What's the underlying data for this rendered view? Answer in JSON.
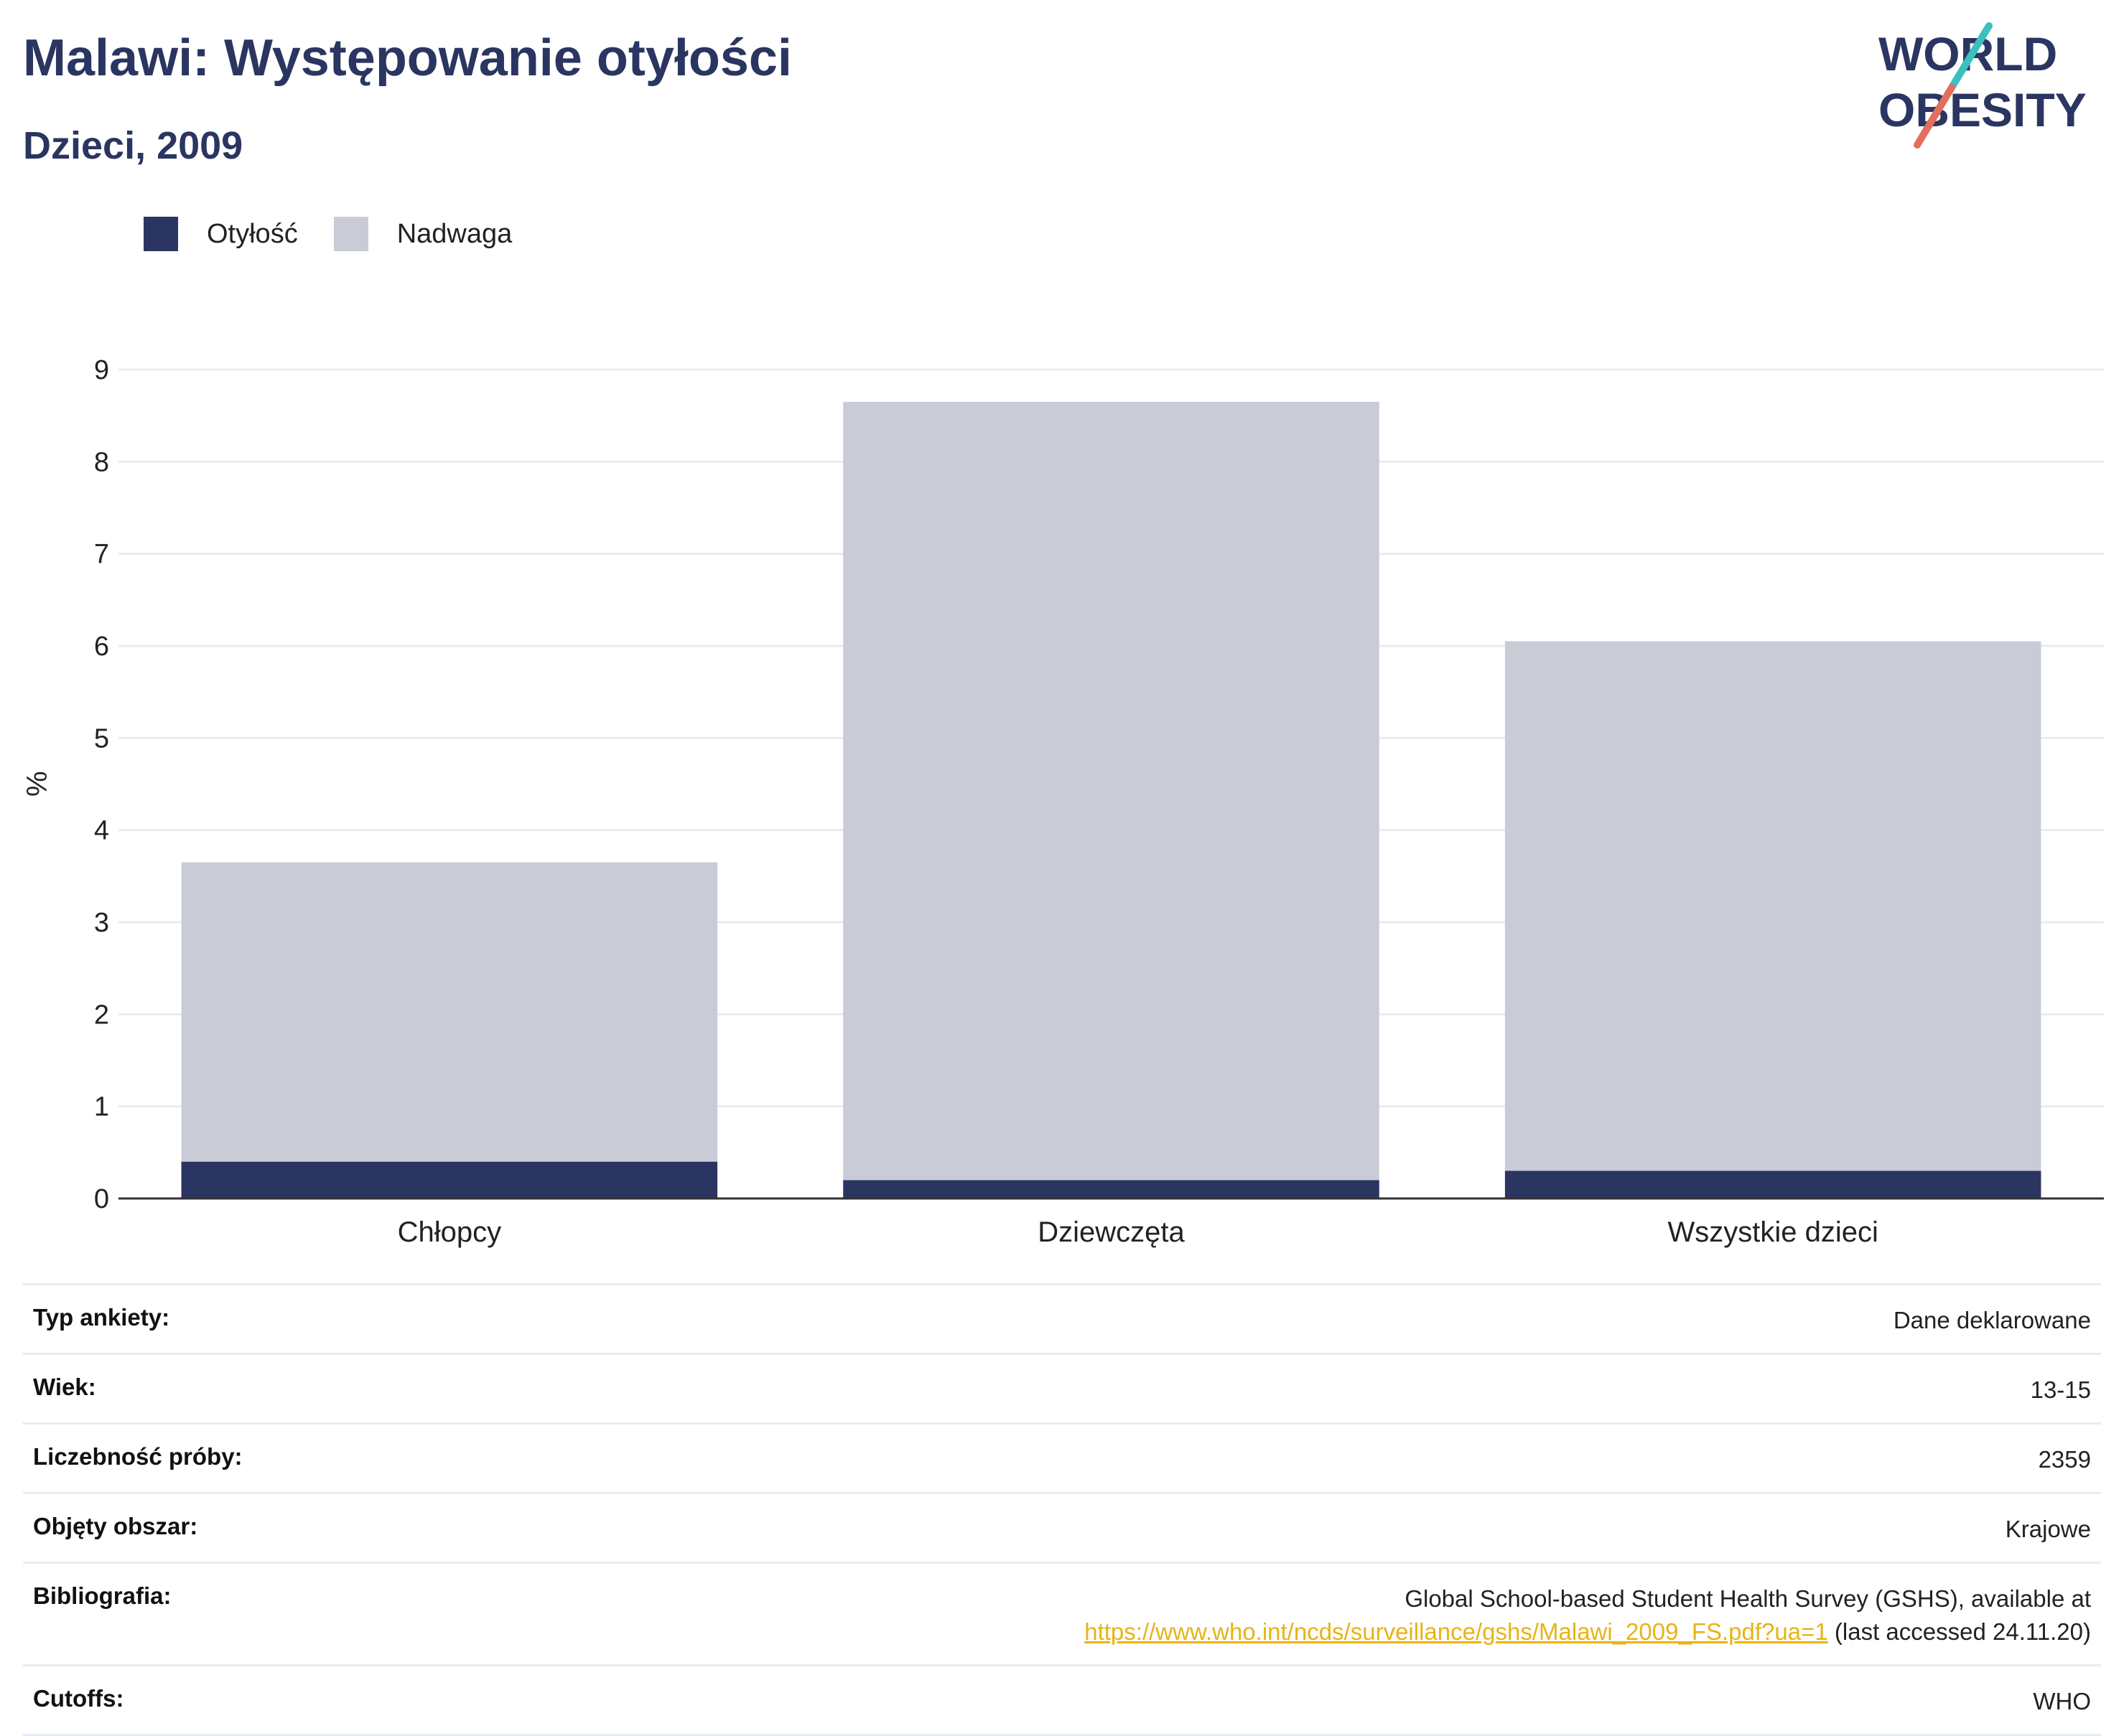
{
  "title": "Malawi: Występowanie otyłości",
  "subtitle": "Dzieci, 2009",
  "logo": {
    "line1": "WORLD",
    "line2": "OBESITY"
  },
  "legend": [
    {
      "label": "Otyłość",
      "color": "#2a3561"
    },
    {
      "label": "Nadwaga",
      "color": "#c9ccd7"
    }
  ],
  "chart_data": {
    "type": "bar",
    "stacked": true,
    "categories": [
      "Chłopcy",
      "Dziewczęta",
      "Wszystkie dzieci"
    ],
    "series": [
      {
        "name": "Otyłość",
        "values": [
          0.4,
          0.2,
          0.3
        ],
        "color": "#2a3561"
      },
      {
        "name": "Nadwaga",
        "values": [
          3.25,
          8.45,
          5.75
        ],
        "color": "#c9ccd7"
      }
    ],
    "ylabel": "%",
    "ylim": [
      0,
      9
    ],
    "yticks": [
      0,
      1,
      2,
      3,
      4,
      5,
      6,
      7,
      8,
      9
    ],
    "grid": true
  },
  "info": {
    "survey_type": {
      "label": "Typ ankiety:",
      "value": "Dane deklarowane"
    },
    "age": {
      "label": "Wiek:",
      "value": "13-15"
    },
    "sample_size": {
      "label": "Liczebność próby:",
      "value": "2359"
    },
    "area": {
      "label": "Objęty obszar:",
      "value": "Krajowe"
    },
    "bibliography": {
      "label": "Bibliografia:",
      "text": "Global School-based Student Health Survey (GSHS), available at",
      "link": "https://www.who.int/ncds/surveillance/gshs/Malawi_2009_FS.pdf?ua=1",
      "suffix": "(last accessed 24.11.20)"
    },
    "cutoffs": {
      "label": "Cutoffs:",
      "value": "WHO"
    }
  }
}
